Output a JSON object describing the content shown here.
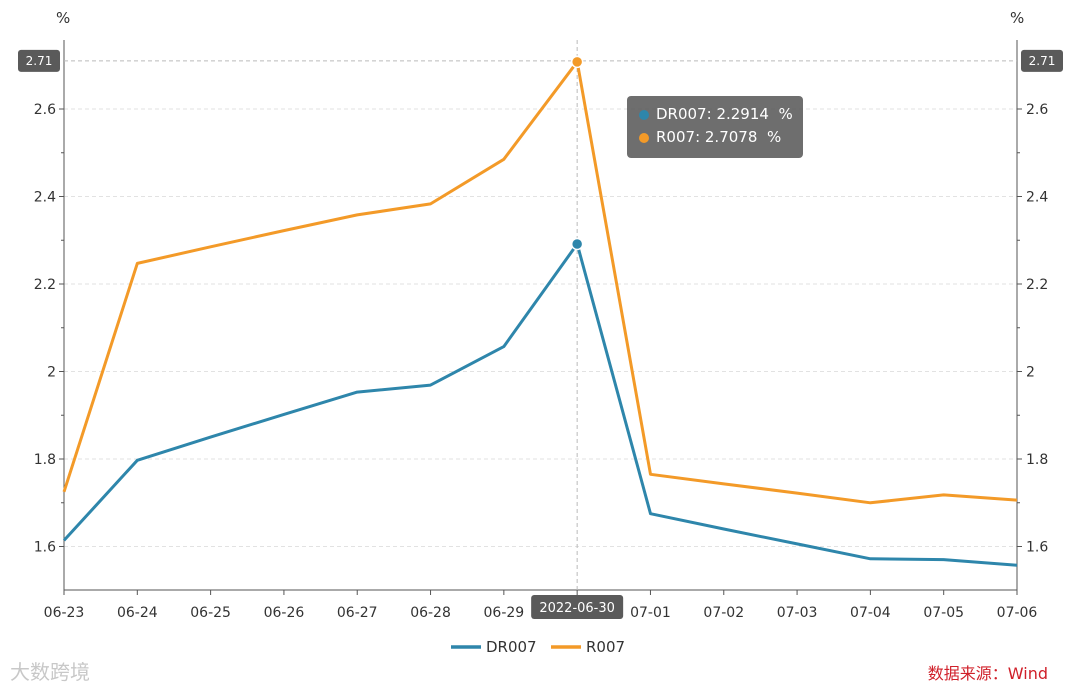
{
  "chart_data": {
    "type": "line",
    "categories": [
      "06-23",
      "06-24",
      "06-25",
      "06-26",
      "06-27",
      "06-28",
      "06-29",
      "06-30",
      "07-01",
      "07-02",
      "07-03",
      "07-04",
      "07-05",
      "07-06"
    ],
    "x_tick_labels": [
      "06-23",
      "06-24",
      "06-25",
      "06-26",
      "06-27",
      "06-28",
      "06-29",
      "07-01",
      "07-02",
      "07-03",
      "07-04",
      "07-05",
      "07-06"
    ],
    "series": [
      {
        "name": "DR007",
        "color": "#2e86ab",
        "values": [
          1.614,
          1.797,
          1.85,
          1.902,
          1.953,
          1.969,
          2.057,
          2.2914,
          1.675,
          1.64,
          1.606,
          1.572,
          1.57,
          1.557
        ]
      },
      {
        "name": "R007",
        "color": "#f39a28",
        "values": [
          1.725,
          2.247,
          2.285,
          2.322,
          2.358,
          2.383,
          2.485,
          2.7078,
          1.765,
          1.743,
          1.722,
          1.7,
          1.718,
          1.706
        ]
      }
    ],
    "ylim": [
      1.5,
      2.75
    ],
    "y_ticks": [
      1.6,
      1.8,
      2,
      2.2,
      2.4,
      2.6
    ],
    "y_tick_labels": [
      "1.6",
      "1.8",
      "2",
      "2.2",
      "2.4",
      "2.6"
    ],
    "y_unit_left": "%",
    "y_unit_right": "%",
    "grid": true,
    "legend_placement": "bottom-center",
    "crosshair": {
      "category": "2022-06-30",
      "index": 7,
      "y_value": 2.71,
      "y_label": "2.71"
    },
    "tooltip": {
      "rows": [
        {
          "name": "DR007",
          "value": "2.2914",
          "unit": "%",
          "color": "#2e86ab"
        },
        {
          "name": "R007",
          "value": "2.7078",
          "unit": "%",
          "color": "#f39a28"
        }
      ]
    }
  },
  "watermark": "大数跨境",
  "source": "数据来源：Wind"
}
